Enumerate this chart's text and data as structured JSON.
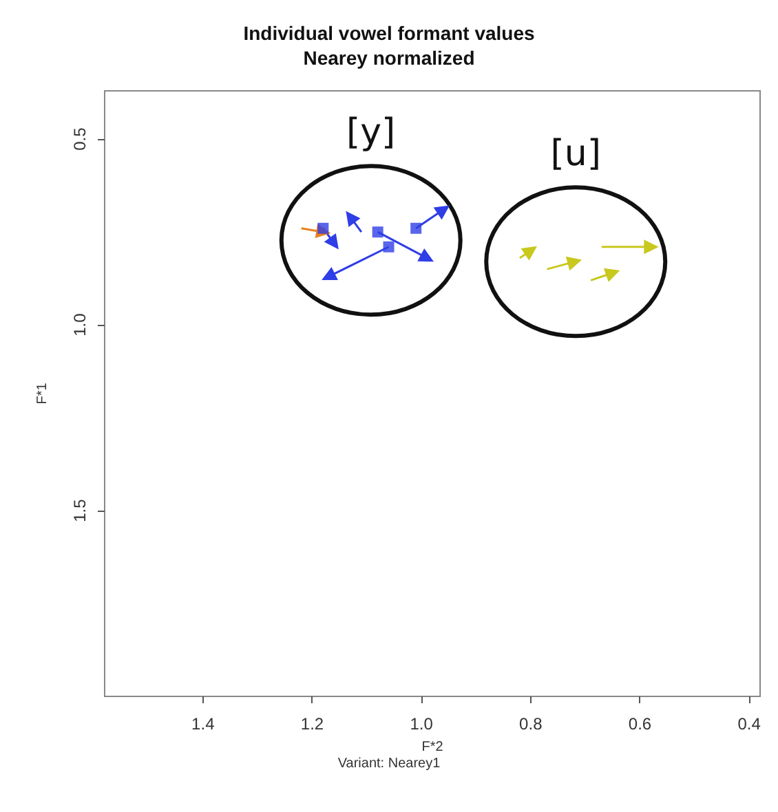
{
  "chart_data": {
    "type": "line",
    "title": "Individual vowel formant values",
    "subtitle": "Nearey normalized",
    "xlabel": "F*2",
    "ylabel": "F*1",
    "annotations": [
      "[y]",
      "[u]",
      "Variant: Nearey1"
    ],
    "xlim": [
      1.58,
      0.38
    ],
    "ylim": [
      2.0,
      0.37
    ],
    "xticks": [
      1.4,
      1.2,
      {
        "value": 1,
        "label": "1.0"
      },
      0.8,
      0.6,
      0.4
    ],
    "yticks": [
      0.5,
      {
        "value": 1,
        "label": "1.0"
      },
      1.5
    ],
    "grid": false,
    "line_style": "solid",
    "marker": "triangle",
    "series": [
      {
        "color": "#2f3ee6",
        "type": "scatter",
        "marker": "square",
        "x": [
          1.01,
          1.08,
          1.06,
          1.18
        ],
        "values": [
          0.74,
          0.75,
          0.79,
          0.74
        ]
      },
      {
        "color": "#2f3ee6",
        "x": [
          1.01,
          0.96
        ],
        "values": [
          0.74,
          0.69
        ]
      },
      {
        "color": "#2f3ee6",
        "x": [
          1.08,
          0.99
        ],
        "values": [
          0.75,
          0.82
        ]
      },
      {
        "color": "#2f3ee6",
        "x": [
          1.06,
          1.17
        ],
        "values": [
          0.79,
          0.87
        ]
      },
      {
        "color": "#2f3ee6",
        "x": [
          1.18,
          1.16
        ],
        "values": [
          0.74,
          0.78
        ]
      },
      {
        "color": "#2f3ee6",
        "x": [
          1.11,
          1.13
        ],
        "values": [
          0.75,
          0.71
        ]
      },
      {
        "color": "#e8801e",
        "x": [
          1.22,
          1.18
        ],
        "values": [
          0.74,
          0.75
        ]
      },
      {
        "color": "#c8c81e",
        "x": [
          0.82,
          0.8
        ],
        "values": [
          0.82,
          0.8
        ]
      },
      {
        "color": "#c8c81e",
        "x": [
          0.77,
          0.72
        ],
        "values": [
          0.85,
          0.83
        ]
      },
      {
        "color": "#c8c81e",
        "x": [
          0.69,
          0.65
        ],
        "values": [
          0.88,
          0.86
        ]
      },
      {
        "color": "#c8c81e",
        "x": [
          0.67,
          0.58
        ],
        "values": [
          0.79,
          0.79
        ]
      }
    ]
  }
}
